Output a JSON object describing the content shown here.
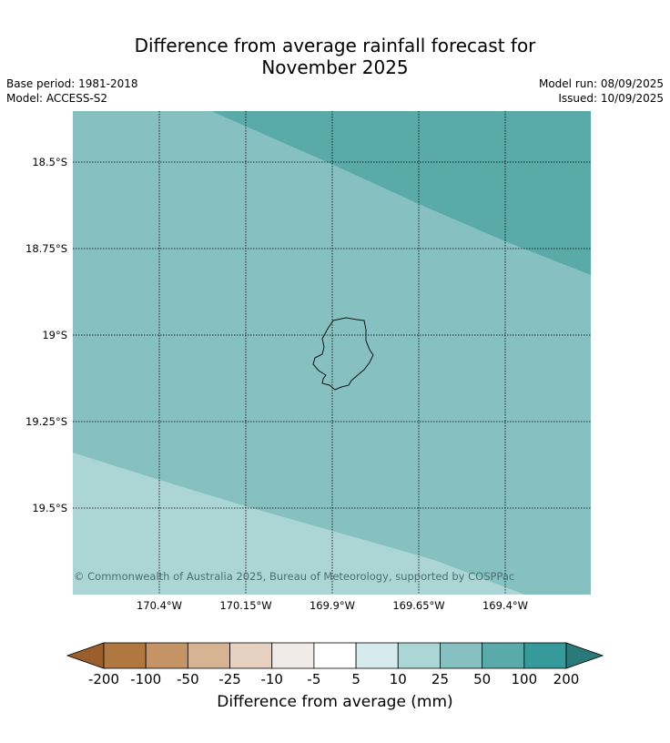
{
  "title": {
    "line1": "Difference from average rainfall forecast for",
    "line2": "November 2025"
  },
  "meta": {
    "base_period": "Base period: 1981-2018",
    "model": "Model: ACCESS-S2",
    "model_run": "Model run: 08/09/2025",
    "issued": "Issued: 10/09/2025"
  },
  "map": {
    "lat_labels": [
      "18.5°S",
      "18.75°S",
      "19°S",
      "19.25°S",
      "19.5°S"
    ],
    "lon_labels": [
      "170.4°W",
      "170.15°W",
      "169.9°W",
      "169.65°W",
      "169.4°W"
    ],
    "copyright": "© Commonwealth of Australia 2025, Bureau of Meteorology, supported by COSPPac",
    "region_colors": {
      "band_100": "#5aaaaa",
      "band_50": "#86c0c0",
      "band_25": "#acd5d5"
    },
    "island_name": "island-outline"
  },
  "colorbar": {
    "label": "Difference from average (mm)",
    "ticks": [
      "-200",
      "-100",
      "-50",
      "-25",
      "-10",
      "-5",
      "5",
      "10",
      "25",
      "50",
      "100",
      "200"
    ],
    "colors": [
      "#9a5f2c",
      "#b07840",
      "#c49467",
      "#d6b392",
      "#e6d0bf",
      "#f0ebe8",
      "#ffffff",
      "#d6ebeb",
      "#acd5d5",
      "#86c0c0",
      "#5aaaaa",
      "#369a9a",
      "#2a7a7a"
    ]
  }
}
